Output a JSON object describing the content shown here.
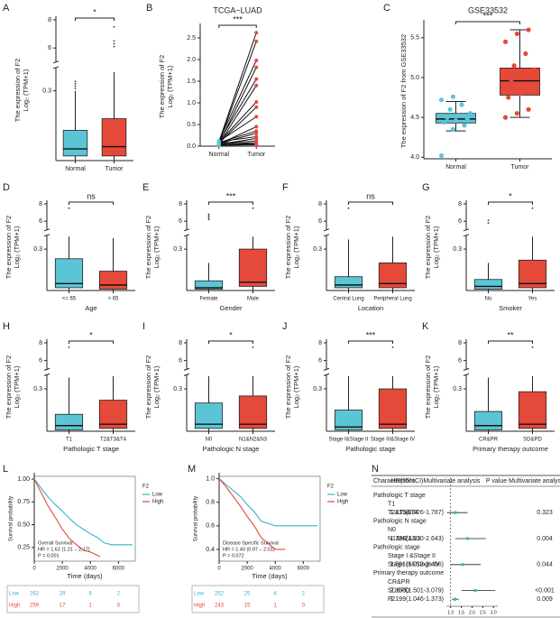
{
  "chart_data": [
    {
      "label": "A",
      "type": "box",
      "ylabel": [
        "The expression of F2",
        "Log₂ (TPM+1)"
      ],
      "categories": [
        "Normal",
        "Tumor"
      ],
      "colors": [
        "#5bc5d6",
        "#e5493a"
      ],
      "boxes": [
        {
          "whislo": 0,
          "q1": 0.02,
          "med": 0.05,
          "q3": 0.13,
          "whishi": 0.3
        },
        {
          "whislo": 0,
          "q1": 0.02,
          "med": 0.06,
          "q3": 0.18,
          "whishi": 0.38
        }
      ],
      "outliers": [
        [
          0.31,
          0.32,
          0.33,
          0.34
        ],
        [
          6.1,
          6.3,
          6.5,
          7.5
        ]
      ],
      "ylim": [
        0,
        8
      ],
      "axis_break": [
        0.4,
        5
      ],
      "yticks": [
        0.3,
        6,
        8
      ],
      "significance": "*"
    },
    {
      "label": "B",
      "type": "paired",
      "title": "TCGA−LUAD",
      "ylabel": [
        "The expression of F2",
        "Log₂ (TPM+1)"
      ],
      "categories": [
        "Normal",
        "Tumor"
      ],
      "colors": [
        "#5bc5d6",
        "#e5493a"
      ],
      "pairs": [
        [
          0.1,
          2.62
        ],
        [
          0.08,
          2.42
        ],
        [
          0.12,
          1.98
        ],
        [
          0.06,
          1.82
        ],
        [
          0.1,
          1.55
        ],
        [
          0.05,
          1.4
        ],
        [
          0.09,
          1.02
        ],
        [
          0.07,
          0.9
        ],
        [
          0.11,
          0.68
        ],
        [
          0.05,
          0.45
        ],
        [
          0.08,
          0.35
        ],
        [
          0.06,
          0.3
        ],
        [
          0.1,
          0.22
        ],
        [
          0.04,
          0.18
        ],
        [
          0.07,
          0.12
        ],
        [
          0.05,
          0.08
        ],
        [
          0.03,
          0.05
        ],
        [
          0.09,
          0.04
        ],
        [
          0.02,
          0.03
        ]
      ],
      "ylim": [
        0,
        2.75
      ],
      "yticks": [
        {
          "value": 0,
          "label": "0.0"
        },
        0.5,
        {
          "value": 1,
          "label": "1.0"
        },
        1.5,
        {
          "value": 2,
          "label": "2.0"
        },
        2.5
      ],
      "significance": "***"
    },
    {
      "label": "C",
      "type": "box",
      "title": "GSE33532",
      "ylabel": [
        "The expression of F2 from GSE33532"
      ],
      "categories": [
        "Normal",
        "Tumor"
      ],
      "colors": [
        "#5bc5d6",
        "#e5493a"
      ],
      "boxes": [
        {
          "whislo": 4.33,
          "q1": 4.43,
          "med": 4.48,
          "q3": 4.55,
          "whishi": 4.7
        },
        {
          "whislo": 4.5,
          "q1": 4.78,
          "med": 4.96,
          "q3": 5.12,
          "whishi": 5.6
        }
      ],
      "points": [
        [
          4.02,
          4.35,
          4.4,
          4.44,
          4.46,
          4.48,
          4.5,
          4.52,
          4.55,
          4.6,
          4.66,
          4.72,
          4.76
        ],
        [
          4.5,
          4.55,
          4.6,
          4.75,
          4.8,
          4.9,
          4.95,
          5.0,
          5.1,
          5.15,
          5.3,
          5.45,
          5.55,
          5.6
        ]
      ],
      "ylim": [
        3.98,
        5.68
      ],
      "yticks": [
        {
          "value": 4,
          "label": "4.0"
        },
        4.5,
        {
          "value": 5,
          "label": "5.0"
        },
        5.5
      ],
      "significance": "***",
      "caps": true
    },
    {
      "label": "D",
      "type": "box",
      "xlabel": "Age",
      "ylabel": [
        "The expression of F2",
        "Log₂ (TPM+1)"
      ],
      "categories": [
        "<= 65",
        "> 65"
      ],
      "colors": [
        "#5bc5d6",
        "#e5493a"
      ],
      "boxes": [
        {
          "whislo": 0,
          "q1": 0.02,
          "med": 0.05,
          "q3": 0.23,
          "whishi": 0.39
        },
        {
          "whislo": 0,
          "q1": 0.01,
          "med": 0.04,
          "q3": 0.14,
          "whishi": 0.38
        }
      ],
      "outliers": [
        [
          7.5
        ],
        []
      ],
      "ylim": [
        0,
        8
      ],
      "axis_break": [
        0.4,
        5
      ],
      "yticks": [
        0.3,
        6,
        8
      ],
      "significance": "ns"
    },
    {
      "label": "E",
      "type": "box",
      "xlabel": "Gender",
      "ylabel": [
        "The expression of F2",
        "Log₂ (TPM+1)"
      ],
      "categories": [
        "Female",
        "Male"
      ],
      "colors": [
        "#5bc5d6",
        "#e5493a"
      ],
      "boxes": [
        {
          "whislo": 0,
          "q1": 0.01,
          "med": 0.02,
          "q3": 0.07,
          "whishi": 0.2
        },
        {
          "whislo": 0,
          "q1": 0.03,
          "med": 0.06,
          "q3": 0.3,
          "whishi": 0.39
        }
      ],
      "outliers": [
        [
          6.2,
          6.4,
          6.6,
          6.8
        ],
        [
          7.5
        ]
      ],
      "ylim": [
        0,
        8
      ],
      "axis_break": [
        0.4,
        5
      ],
      "yticks": [
        0.3,
        6,
        8
      ],
      "significance": "***"
    },
    {
      "label": "F",
      "type": "box",
      "xlabel": "Location",
      "ylabel": [
        "The expression of F2",
        "Log₂ (TPM+1)"
      ],
      "categories": [
        "Central Lung",
        "Peripheral Lung"
      ],
      "colors": [
        "#5bc5d6",
        "#e5493a"
      ],
      "boxes": [
        {
          "whislo": 0,
          "q1": 0.02,
          "med": 0.04,
          "q3": 0.1,
          "whishi": 0.37
        },
        {
          "whislo": 0,
          "q1": 0.02,
          "med": 0.05,
          "q3": 0.2,
          "whishi": 0.39
        }
      ],
      "outliers": [
        [
          7.5
        ],
        []
      ],
      "ylim": [
        0,
        8
      ],
      "axis_break": [
        0.4,
        5
      ],
      "yticks": [
        0.3,
        6,
        8
      ],
      "significance": "ns"
    },
    {
      "label": "G",
      "type": "box",
      "xlabel": "Smoker",
      "ylabel": [
        "The expression of F2",
        "Log₂ (TPM+1)"
      ],
      "categories": [
        "No",
        "Yes"
      ],
      "colors": [
        "#5bc5d6",
        "#e5493a"
      ],
      "boxes": [
        {
          "whislo": 0,
          "q1": 0.01,
          "med": 0.03,
          "q3": 0.08,
          "whishi": 0.2
        },
        {
          "whislo": 0,
          "q1": 0.02,
          "med": 0.05,
          "q3": 0.22,
          "whishi": 0.39
        }
      ],
      "outliers": [
        [
          5.8,
          6.1
        ],
        [
          7.5
        ]
      ],
      "ylim": [
        0,
        8
      ],
      "axis_break": [
        0.4,
        5
      ],
      "yticks": [
        0.3,
        6,
        8
      ],
      "significance": "*"
    },
    {
      "label": "H",
      "type": "box",
      "xlabel": "Pathologic T stage",
      "ylabel": [
        "The expression of F2",
        "Log₂ (TPM+1)"
      ],
      "categories": [
        "T1",
        "T2&T3&T4"
      ],
      "colors": [
        "#5bc5d6",
        "#e5493a"
      ],
      "boxes": [
        {
          "whislo": 0,
          "q1": 0.01,
          "med": 0.04,
          "q3": 0.12,
          "whishi": 0.38
        },
        {
          "whislo": 0,
          "q1": 0.02,
          "med": 0.05,
          "q3": 0.22,
          "whishi": 0.39
        }
      ],
      "outliers": [
        [
          7.5
        ],
        []
      ],
      "ylim": [
        0,
        8
      ],
      "axis_break": [
        0.4,
        5
      ],
      "yticks": [
        0.3,
        6,
        8
      ],
      "significance": "*"
    },
    {
      "label": "I",
      "type": "box",
      "xlabel": "Pathologic N stage",
      "ylabel": [
        "The expression of F2",
        "Log₂ (TPM+1)"
      ],
      "categories": [
        "N0",
        "N1&N2&N3"
      ],
      "colors": [
        "#5bc5d6",
        "#e5493a"
      ],
      "boxes": [
        {
          "whislo": 0,
          "q1": 0.02,
          "med": 0.05,
          "q3": 0.2,
          "whishi": 0.39
        },
        {
          "whislo": 0,
          "q1": 0.02,
          "med": 0.05,
          "q3": 0.25,
          "whishi": 0.39
        }
      ],
      "outliers": [
        [],
        [
          7.5
        ]
      ],
      "ylim": [
        0,
        8
      ],
      "axis_break": [
        0.4,
        5
      ],
      "yticks": [
        0.3,
        6,
        8
      ],
      "significance": "*"
    },
    {
      "label": "J",
      "type": "box",
      "xlabel": "Pathologic stage",
      "ylabel": [
        "The expression of F2",
        "Log₂ (TPM+1)"
      ],
      "categories": [
        "Stage I&Stage II",
        "Stage III&Stage IV"
      ],
      "colors": [
        "#5bc5d6",
        "#e5493a"
      ],
      "boxes": [
        {
          "whislo": 0,
          "q1": 0.01,
          "med": 0.03,
          "q3": 0.15,
          "whishi": 0.39
        },
        {
          "whislo": 0,
          "q1": 0.02,
          "med": 0.05,
          "q3": 0.3,
          "whishi": 0.39
        }
      ],
      "outliers": [
        [],
        [
          7.5
        ]
      ],
      "ylim": [
        0,
        8
      ],
      "axis_break": [
        0.4,
        5
      ],
      "yticks": [
        0.3,
        6,
        8
      ],
      "significance": "***"
    },
    {
      "label": "K",
      "type": "box",
      "xlabel": "Primary therapy outcome",
      "ylabel": [
        "The expression of F2",
        "Log₂ (TPM+1)"
      ],
      "categories": [
        "CR&PR",
        "SD&PD"
      ],
      "colors": [
        "#5bc5d6",
        "#e5493a"
      ],
      "boxes": [
        {
          "whislo": 0,
          "q1": 0.01,
          "med": 0.04,
          "q3": 0.14,
          "whishi": 0.38
        },
        {
          "whislo": 0,
          "q1": 0.02,
          "med": 0.05,
          "q3": 0.28,
          "whishi": 0.39
        }
      ],
      "outliers": [
        [],
        [
          7.5
        ]
      ],
      "ylim": [
        0,
        8
      ],
      "axis_break": [
        0.4,
        5
      ],
      "yticks": [
        0.3,
        6,
        8
      ],
      "significance": "**"
    },
    {
      "label": "L",
      "type": "survival",
      "xlabel": "Time (days)",
      "ylabel": "Survival probability",
      "legend_title": "F2",
      "xlim": [
        0,
        7200
      ],
      "xticks": [
        0,
        2000,
        4000,
        6000
      ],
      "ylim": [
        0.1,
        1.03
      ],
      "yticks": [
        0.25,
        {
          "value": 0.5,
          "label": "0.50"
        },
        0.75,
        {
          "value": 1,
          "label": "1.00"
        }
      ],
      "annotations": [
        "Overall Survival",
        "HR = 1.62 (1.21 – 2.17)",
        "P = 0.001"
      ],
      "series": [
        {
          "name": "Low",
          "color": "#35b6c6",
          "x": [
            0,
            500,
            1000,
            1500,
            2000,
            2500,
            3000,
            3500,
            4000,
            4500,
            5000,
            5500,
            7000
          ],
          "values": [
            1,
            0.9,
            0.8,
            0.72,
            0.65,
            0.57,
            0.5,
            0.45,
            0.4,
            0.36,
            0.3,
            0.28,
            0.28
          ],
          "at_risk": [
            262,
            28,
            6,
            2
          ]
        },
        {
          "name": "High",
          "color": "#e5493a",
          "x": [
            0,
            500,
            1000,
            1500,
            2000,
            2500,
            3000,
            3500,
            4000,
            4700
          ],
          "values": [
            1,
            0.85,
            0.7,
            0.58,
            0.45,
            0.35,
            0.28,
            0.22,
            0.2,
            0.15
          ],
          "at_risk": [
            259,
            17,
            1,
            0
          ]
        }
      ]
    },
    {
      "label": "M",
      "type": "survival",
      "xlabel": "Time (days)",
      "ylabel": "Survival probability",
      "legend_title": "F2",
      "xlim": [
        0,
        7200
      ],
      "xticks": [
        0,
        2000,
        4000,
        6000
      ],
      "ylim": [
        0.3,
        1.02
      ],
      "yticks": [
        0.4,
        0.6,
        0.8,
        {
          "value": 1,
          "label": "1.0"
        }
      ],
      "annotations": [
        "Disease Specific Survival",
        "HR = 1.40 (0.97 – 2.01)",
        "P = 0.072"
      ],
      "series": [
        {
          "name": "Low",
          "color": "#35b6c6",
          "x": [
            0,
            500,
            1000,
            1500,
            2000,
            2500,
            3000,
            3500,
            4000,
            4500,
            7000
          ],
          "values": [
            1,
            0.95,
            0.9,
            0.85,
            0.78,
            0.72,
            0.64,
            0.62,
            0.6,
            0.6,
            0.6
          ],
          "at_risk": [
            252,
            25,
            4,
            2
          ]
        },
        {
          "name": "High",
          "color": "#e5493a",
          "x": [
            0,
            500,
            1000,
            1500,
            2000,
            2500,
            3000,
            3500,
            4000,
            4700
          ],
          "values": [
            1,
            0.93,
            0.85,
            0.77,
            0.68,
            0.6,
            0.5,
            0.45,
            0.4,
            0.4
          ],
          "at_risk": [
            243,
            15,
            1,
            0
          ]
        }
      ]
    },
    {
      "label": "N",
      "type": "forest",
      "columns": [
        "Characteristics",
        "HR(95%CI)Multivariate analysis",
        "P value Multivariate analysis"
      ],
      "ref": 1,
      "xlim": [
        0.8,
        3.2
      ],
      "xticks": [
        {
          "value": 1,
          "label": "1.0"
        },
        1.5,
        {
          "value": 2,
          "label": "2.0"
        },
        2.5,
        {
          "value": 3,
          "label": "3.0"
        }
      ],
      "rows": [
        {
          "label": "Pathologic T stage"
        },
        {
          "label": "T1",
          "indent": true
        },
        {
          "label": "T2&T3&T4",
          "indent": true,
          "hr": 1.215,
          "lo": 0.826,
          "hi": 1.787,
          "hr_text": "1.215(0.826-1.787)",
          "p": "0.323"
        },
        {
          "label": "Pathologic N stage"
        },
        {
          "label": "N0",
          "indent": true
        },
        {
          "label": "N1&N2&N3",
          "indent": true,
          "hr": 1.788,
          "lo": 1.21,
          "hi": 2.643,
          "hr_text": "1.788(1.210-2.643)",
          "p": "0.004"
        },
        {
          "label": "Pathologic stage"
        },
        {
          "label": "Stage I &Stage II",
          "indent": true
        },
        {
          "label": "Stage III&Stage IV",
          "indent": true,
          "hr": 1.561,
          "lo": 1.012,
          "hi": 2.406,
          "hr_text": "1.561(1.012-2.406)",
          "p": "0.044"
        },
        {
          "label": "Primary therapy outcome"
        },
        {
          "label": "CR&PR",
          "indent": true
        },
        {
          "label": "SD&PD",
          "indent": true,
          "hr": 2.15,
          "lo": 1.501,
          "hi": 3.079,
          "hr_text": "2.150(1.501-3.079)",
          "p": "<0.001"
        },
        {
          "label": "F2",
          "indent": true,
          "hr": 1.199,
          "lo": 1.046,
          "hi": 1.373,
          "hr_text": "1.199(1.046-1.373)",
          "p": "0.009"
        }
      ]
    }
  ]
}
